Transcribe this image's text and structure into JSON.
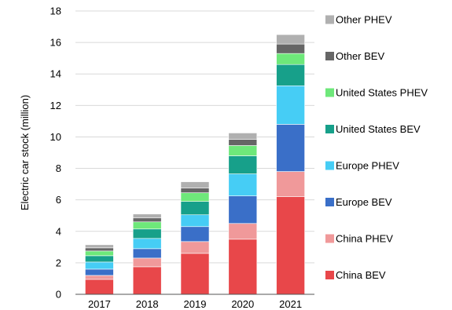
{
  "chart_data": {
    "type": "bar",
    "stacked": true,
    "title": "",
    "xlabel": "",
    "ylabel": "Electric car stock (million)",
    "ylim": [
      0,
      18
    ],
    "yticks": [
      0,
      2,
      4,
      6,
      8,
      10,
      12,
      14,
      16,
      18
    ],
    "categories": [
      "2017",
      "2018",
      "2019",
      "2020",
      "2021"
    ],
    "grid": "horizontal",
    "legend_position": "right",
    "series": [
      {
        "name": "China BEV",
        "color": "#e8474a",
        "values": [
          0.95,
          1.75,
          2.6,
          3.5,
          6.2
        ]
      },
      {
        "name": "China PHEV",
        "color": "#f0999a",
        "values": [
          0.25,
          0.55,
          0.75,
          1.0,
          1.6
        ]
      },
      {
        "name": "Europe BEV",
        "color": "#3a6fc8",
        "values": [
          0.4,
          0.6,
          0.95,
          1.75,
          3.0
        ]
      },
      {
        "name": "Europe PHEV",
        "color": "#46cdf5",
        "values": [
          0.45,
          0.65,
          0.75,
          1.4,
          2.45
        ]
      },
      {
        "name": "United States BEV",
        "color": "#17a08a",
        "values": [
          0.4,
          0.6,
          0.85,
          1.15,
          1.35
        ]
      },
      {
        "name": "United States PHEV",
        "color": "#6ee87a",
        "values": [
          0.3,
          0.45,
          0.55,
          0.65,
          0.7
        ]
      },
      {
        "name": "Other BEV",
        "color": "#666666",
        "values": [
          0.2,
          0.25,
          0.3,
          0.4,
          0.6
        ]
      },
      {
        "name": "Other PHEV",
        "color": "#b0b0b0",
        "values": [
          0.2,
          0.25,
          0.4,
          0.4,
          0.6
        ]
      }
    ]
  }
}
